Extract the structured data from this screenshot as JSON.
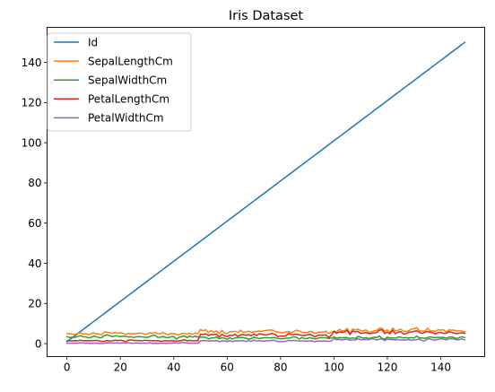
{
  "chart_data": {
    "type": "line",
    "title": "Iris Dataset",
    "xlabel": "",
    "ylabel": "",
    "xlim": [
      -7.45,
      156.45
    ],
    "ylim": [
      -6.45,
      157.45
    ],
    "xticks": [
      0,
      20,
      40,
      60,
      80,
      100,
      120,
      140
    ],
    "yticks": [
      0,
      20,
      40,
      60,
      80,
      100,
      120,
      140
    ],
    "grid": false,
    "legend_position": "top-left",
    "x": "0..149 (row index)",
    "series": [
      {
        "name": "Id",
        "color": "#1f77b4",
        "values": [
          1,
          2,
          3,
          4,
          5,
          6,
          7,
          8,
          9,
          10,
          11,
          12,
          13,
          14,
          15,
          16,
          17,
          18,
          19,
          20,
          21,
          22,
          23,
          24,
          25,
          26,
          27,
          28,
          29,
          30,
          31,
          32,
          33,
          34,
          35,
          36,
          37,
          38,
          39,
          40,
          41,
          42,
          43,
          44,
          45,
          46,
          47,
          48,
          49,
          50,
          51,
          52,
          53,
          54,
          55,
          56,
          57,
          58,
          59,
          60,
          61,
          62,
          63,
          64,
          65,
          66,
          67,
          68,
          69,
          70,
          71,
          72,
          73,
          74,
          75,
          76,
          77,
          78,
          79,
          80,
          81,
          82,
          83,
          84,
          85,
          86,
          87,
          88,
          89,
          90,
          91,
          92,
          93,
          94,
          95,
          96,
          97,
          98,
          99,
          100,
          101,
          102,
          103,
          104,
          105,
          106,
          107,
          108,
          109,
          110,
          111,
          112,
          113,
          114,
          115,
          116,
          117,
          118,
          119,
          120,
          121,
          122,
          123,
          124,
          125,
          126,
          127,
          128,
          129,
          130,
          131,
          132,
          133,
          134,
          135,
          136,
          137,
          138,
          139,
          140,
          141,
          142,
          143,
          144,
          145,
          146,
          147,
          148,
          149,
          150
        ]
      },
      {
        "name": "SepalLengthCm",
        "color": "#ff7f0e",
        "values": [
          5.1,
          4.9,
          4.7,
          4.6,
          5.0,
          5.4,
          4.6,
          5.0,
          4.4,
          4.9,
          5.4,
          4.8,
          4.8,
          4.3,
          5.8,
          5.7,
          5.4,
          5.1,
          5.7,
          5.1,
          5.4,
          5.1,
          4.6,
          5.1,
          4.8,
          5.0,
          5.0,
          5.2,
          5.2,
          4.7,
          4.8,
          5.4,
          5.2,
          5.5,
          4.9,
          5.0,
          5.5,
          4.9,
          4.4,
          5.1,
          5.0,
          4.5,
          4.4,
          5.0,
          5.1,
          4.8,
          5.1,
          4.6,
          5.3,
          5.0,
          7.0,
          6.4,
          6.9,
          5.5,
          6.5,
          5.7,
          6.3,
          4.9,
          6.6,
          5.2,
          5.0,
          5.9,
          6.0,
          6.1,
          5.6,
          6.7,
          5.6,
          5.8,
          6.2,
          5.6,
          5.9,
          6.1,
          6.3,
          6.1,
          6.4,
          6.6,
          6.8,
          6.7,
          6.0,
          5.7,
          5.5,
          5.5,
          5.8,
          6.0,
          5.4,
          6.0,
          6.7,
          6.3,
          5.6,
          5.5,
          5.5,
          6.1,
          5.8,
          5.0,
          5.6,
          5.7,
          5.7,
          6.2,
          5.1,
          5.7,
          6.3,
          5.8,
          7.1,
          6.3,
          6.5,
          7.6,
          4.9,
          7.3,
          6.7,
          7.2,
          6.5,
          6.4,
          6.8,
          5.7,
          5.8,
          6.4,
          6.5,
          7.7,
          7.7,
          6.0,
          6.9,
          5.6,
          7.7,
          6.3,
          6.7,
          7.2,
          6.2,
          6.1,
          6.4,
          7.2,
          7.4,
          7.9,
          6.4,
          6.3,
          6.1,
          7.7,
          6.3,
          6.4,
          6.0,
          6.9,
          6.7,
          6.9,
          5.8,
          6.8,
          6.7,
          6.7,
          6.3,
          6.5,
          6.2,
          5.9
        ]
      },
      {
        "name": "SepalWidthCm",
        "color": "#2ca02c",
        "values": [
          3.5,
          3.0,
          3.2,
          3.1,
          3.6,
          3.9,
          3.4,
          3.4,
          2.9,
          3.1,
          3.7,
          3.4,
          3.0,
          3.0,
          4.0,
          4.4,
          3.9,
          3.5,
          3.8,
          3.8,
          3.4,
          3.7,
          3.6,
          3.3,
          3.4,
          3.0,
          3.4,
          3.5,
          3.4,
          3.2,
          3.1,
          3.4,
          4.1,
          4.2,
          3.1,
          3.2,
          3.5,
          3.1,
          3.0,
          3.4,
          3.5,
          2.3,
          3.2,
          3.5,
          3.8,
          3.0,
          3.8,
          3.2,
          3.7,
          3.3,
          3.2,
          3.2,
          3.1,
          2.3,
          2.8,
          2.8,
          3.3,
          2.4,
          2.9,
          2.7,
          2.0,
          3.0,
          2.2,
          2.9,
          2.9,
          3.1,
          3.0,
          2.7,
          2.2,
          2.5,
          3.2,
          2.8,
          2.5,
          2.8,
          2.9,
          3.0,
          2.8,
          3.0,
          2.9,
          2.6,
          2.4,
          2.4,
          2.7,
          2.7,
          3.0,
          3.4,
          3.1,
          2.3,
          3.0,
          2.5,
          2.6,
          3.0,
          2.6,
          2.3,
          2.7,
          3.0,
          2.9,
          2.9,
          2.5,
          2.8,
          3.3,
          2.7,
          3.0,
          2.9,
          3.0,
          3.0,
          2.5,
          2.9,
          2.5,
          3.6,
          3.2,
          2.7,
          3.0,
          2.5,
          2.8,
          3.2,
          3.0,
          3.8,
          2.6,
          2.2,
          3.2,
          2.8,
          2.8,
          2.7,
          3.3,
          3.2,
          2.8,
          3.0,
          2.8,
          3.0,
          2.8,
          3.8,
          2.8,
          2.8,
          2.6,
          3.0,
          3.4,
          3.1,
          3.0,
          3.1,
          3.1,
          3.1,
          2.7,
          3.2,
          3.3,
          3.0,
          2.5,
          3.0,
          3.4,
          3.0
        ]
      },
      {
        "name": "PetalLengthCm",
        "color": "#d62728",
        "values": [
          1.4,
          1.4,
          1.3,
          1.5,
          1.4,
          1.7,
          1.4,
          1.5,
          1.4,
          1.5,
          1.5,
          1.6,
          1.4,
          1.1,
          1.2,
          1.5,
          1.3,
          1.4,
          1.7,
          1.5,
          1.7,
          1.5,
          1.0,
          1.7,
          1.9,
          1.6,
          1.6,
          1.5,
          1.4,
          1.6,
          1.6,
          1.5,
          1.5,
          1.4,
          1.5,
          1.2,
          1.3,
          1.5,
          1.3,
          1.5,
          1.3,
          1.3,
          1.3,
          1.6,
          1.9,
          1.4,
          1.6,
          1.4,
          1.5,
          1.4,
          4.7,
          4.5,
          4.9,
          4.0,
          4.6,
          4.5,
          4.7,
          3.3,
          4.6,
          3.9,
          3.5,
          4.2,
          4.0,
          4.7,
          3.6,
          4.4,
          4.5,
          4.1,
          4.5,
          3.9,
          4.8,
          4.0,
          4.9,
          4.7,
          4.3,
          4.4,
          4.8,
          5.0,
          4.5,
          3.5,
          3.8,
          3.7,
          3.9,
          5.1,
          4.5,
          4.5,
          4.7,
          4.4,
          4.1,
          4.0,
          4.4,
          4.6,
          4.0,
          3.3,
          4.2,
          4.2,
          4.2,
          4.3,
          3.0,
          4.1,
          6.0,
          5.1,
          5.9,
          5.6,
          5.8,
          6.6,
          4.5,
          6.3,
          5.8,
          6.1,
          5.1,
          5.3,
          5.5,
          5.0,
          5.1,
          5.3,
          5.5,
          6.7,
          6.9,
          5.0,
          5.7,
          4.9,
          6.7,
          4.9,
          5.7,
          6.0,
          4.8,
          4.9,
          5.6,
          5.8,
          6.1,
          6.4,
          5.6,
          5.1,
          5.6,
          6.1,
          5.6,
          5.5,
          4.8,
          5.4,
          5.6,
          5.1,
          5.1,
          5.9,
          5.7,
          5.2,
          5.0,
          5.2,
          5.4,
          5.1
        ]
      },
      {
        "name": "PetalWidthCm",
        "color": "#9467bd",
        "values": [
          0.2,
          0.2,
          0.2,
          0.2,
          0.2,
          0.4,
          0.3,
          0.2,
          0.2,
          0.1,
          0.2,
          0.2,
          0.1,
          0.1,
          0.2,
          0.4,
          0.4,
          0.3,
          0.3,
          0.3,
          0.2,
          0.4,
          0.2,
          0.5,
          0.2,
          0.2,
          0.4,
          0.2,
          0.2,
          0.2,
          0.2,
          0.4,
          0.1,
          0.2,
          0.1,
          0.2,
          0.2,
          0.1,
          0.2,
          0.2,
          0.3,
          0.3,
          0.2,
          0.6,
          0.4,
          0.3,
          0.2,
          0.2,
          0.2,
          0.2,
          1.4,
          1.5,
          1.5,
          1.3,
          1.5,
          1.3,
          1.6,
          1.0,
          1.3,
          1.4,
          1.0,
          1.5,
          1.0,
          1.4,
          1.3,
          1.4,
          1.5,
          1.0,
          1.5,
          1.1,
          1.8,
          1.3,
          1.5,
          1.2,
          1.3,
          1.4,
          1.4,
          1.7,
          1.5,
          1.0,
          1.1,
          1.0,
          1.2,
          1.6,
          1.5,
          1.6,
          1.5,
          1.3,
          1.3,
          1.3,
          1.2,
          1.4,
          1.2,
          1.0,
          1.3,
          1.2,
          1.3,
          1.3,
          1.1,
          1.3,
          2.5,
          1.9,
          2.1,
          1.8,
          2.2,
          2.1,
          1.7,
          1.8,
          1.8,
          2.5,
          2.0,
          1.9,
          2.1,
          2.0,
          2.4,
          2.3,
          1.8,
          2.2,
          2.3,
          1.5,
          2.3,
          2.0,
          2.0,
          1.8,
          2.1,
          1.8,
          1.8,
          1.8,
          2.1,
          1.6,
          1.9,
          2.0,
          2.2,
          1.5,
          1.4,
          2.3,
          2.4,
          1.8,
          1.8,
          2.1,
          2.4,
          2.3,
          1.9,
          2.3,
          2.5,
          2.3,
          1.9,
          2.0,
          2.3,
          1.8
        ]
      }
    ]
  }
}
